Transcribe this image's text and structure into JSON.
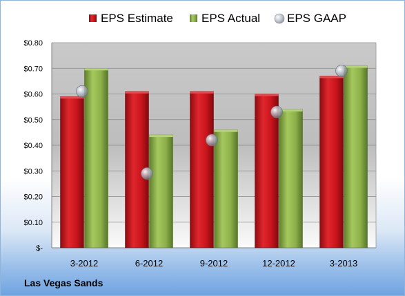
{
  "chart_data": {
    "type": "bar",
    "categories": [
      "3-2012",
      "6-2012",
      "9-2012",
      "12-2012",
      "3-2013"
    ],
    "series": [
      {
        "name": "EPS Estimate",
        "values": [
          0.59,
          0.61,
          0.61,
          0.6,
          0.67
        ],
        "color": "#c8141c",
        "marker": "bar"
      },
      {
        "name": "EPS Actual",
        "values": [
          0.7,
          0.44,
          0.46,
          0.54,
          0.71
        ],
        "color": "#8db04a",
        "marker": "bar"
      },
      {
        "name": "EPS GAAP",
        "values": [
          0.61,
          0.29,
          0.42,
          0.53,
          0.69
        ],
        "color": "#b0b8c4",
        "marker": "bubble"
      }
    ],
    "y_ticks": [
      "$-",
      "$0.10",
      "$0.20",
      "$0.30",
      "$0.40",
      "$0.50",
      "$0.60",
      "$0.70",
      "$0.80"
    ],
    "ylim": [
      0,
      0.8
    ],
    "grid": true,
    "legend_position": "top",
    "footer_label": "Las Vegas Sands"
  }
}
